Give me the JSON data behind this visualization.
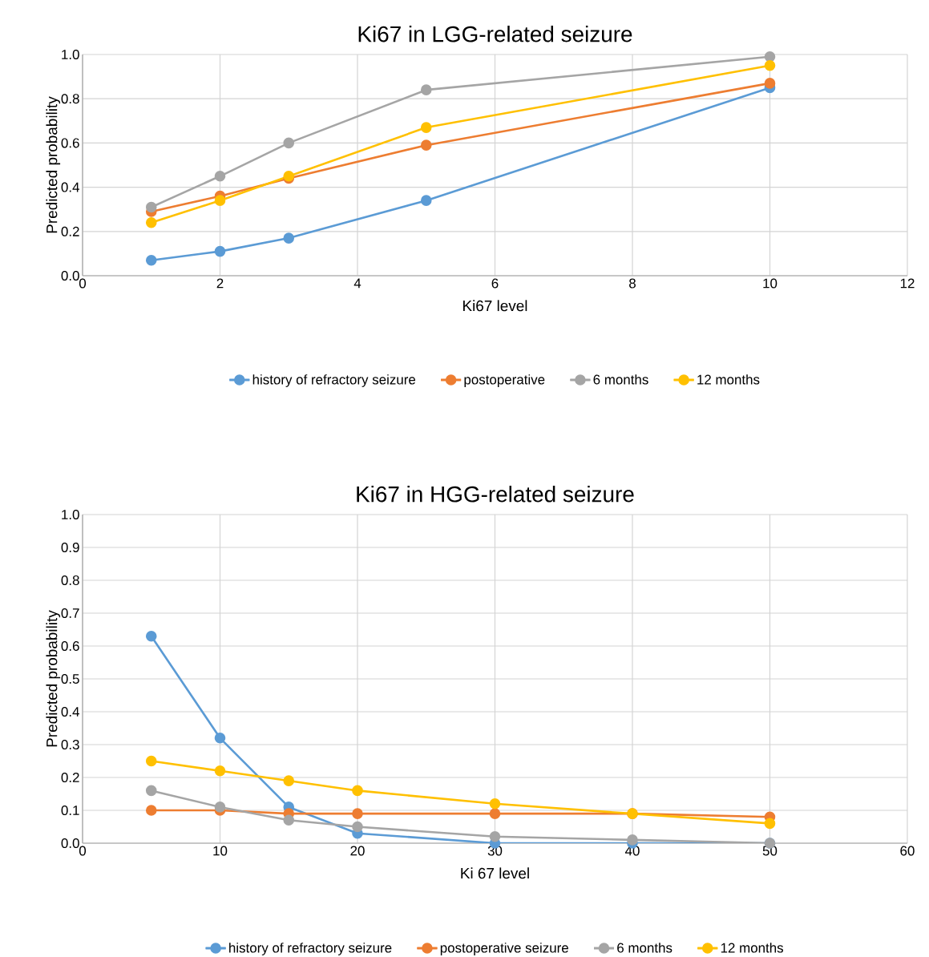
{
  "chart_data": [
    {
      "type": "line",
      "title": "Ki67 in LGG-related seizure",
      "xlabel": "Ki67 level",
      "ylabel": "Predicted probability",
      "xlim": [
        0,
        12
      ],
      "xticks": [
        0,
        2,
        4,
        6,
        8,
        10,
        12
      ],
      "ylim": [
        0,
        1
      ],
      "yticks": [
        {
          "value": 0,
          "label": "0.0"
        },
        {
          "value": 0.2,
          "label": "0.2"
        },
        {
          "value": 0.4,
          "label": "0.4"
        },
        {
          "value": 0.6,
          "label": "0.6"
        },
        {
          "value": 0.8,
          "label": "0.8"
        },
        {
          "value": 1,
          "label": "1.0"
        }
      ],
      "grid": true,
      "legend": "bottom",
      "marker": "circle",
      "line_style": "solid",
      "x": [
        1,
        2,
        3,
        5,
        10
      ],
      "series": [
        {
          "name": "history of refractory seizure",
          "color": "#5b9bd5",
          "values": [
            0.07,
            0.11,
            0.17,
            0.34,
            0.85
          ]
        },
        {
          "name": "postoperative",
          "color": "#ed7d31",
          "values": [
            0.29,
            0.36,
            0.44,
            0.59,
            0.87
          ]
        },
        {
          "name": "6 months",
          "color": "#a5a5a5",
          "values": [
            0.31,
            0.45,
            0.6,
            0.84,
            0.99
          ]
        },
        {
          "name": "12 months",
          "color": "#ffc000",
          "values": [
            0.24,
            0.34,
            0.45,
            0.67,
            0.95
          ]
        }
      ]
    },
    {
      "type": "line",
      "title": "Ki67 in HGG-related seizure",
      "xlabel": "Ki 67 level",
      "ylabel": "Predicted probability",
      "xlim": [
        0,
        60
      ],
      "xticks": [
        0,
        10,
        20,
        30,
        40,
        50,
        60
      ],
      "ylim": [
        0,
        1
      ],
      "yticks": [
        {
          "value": 0,
          "label": "0.0"
        },
        {
          "value": 0.1,
          "label": "0.1"
        },
        {
          "value": 0.2,
          "label": "0.2"
        },
        {
          "value": 0.3,
          "label": "0.3"
        },
        {
          "value": 0.4,
          "label": "0.4"
        },
        {
          "value": 0.5,
          "label": "0.5"
        },
        {
          "value": 0.6,
          "label": "0.6"
        },
        {
          "value": 0.7,
          "label": "0.7"
        },
        {
          "value": 0.8,
          "label": "0.8"
        },
        {
          "value": 0.9,
          "label": "0.9"
        },
        {
          "value": 1,
          "label": "1.0"
        }
      ],
      "grid": true,
      "legend": "bottom",
      "marker": "circle",
      "line_style": "solid",
      "x": [
        5,
        10,
        15,
        20,
        30,
        40,
        50
      ],
      "series": [
        {
          "name": "history of refractory seizure",
          "color": "#5b9bd5",
          "values": [
            0.63,
            0.32,
            0.11,
            0.03,
            0.0,
            0.0,
            0.0
          ]
        },
        {
          "name": "postoperative seizure",
          "color": "#ed7d31",
          "values": [
            0.1,
            0.1,
            0.09,
            0.09,
            0.09,
            0.09,
            0.08
          ]
        },
        {
          "name": "6 months",
          "color": "#a5a5a5",
          "values": [
            0.16,
            0.11,
            0.07,
            0.05,
            0.02,
            0.01,
            0.0
          ]
        },
        {
          "name": "12 months",
          "color": "#ffc000",
          "values": [
            0.25,
            0.22,
            0.19,
            0.16,
            0.12,
            0.09,
            0.06
          ]
        }
      ]
    }
  ]
}
